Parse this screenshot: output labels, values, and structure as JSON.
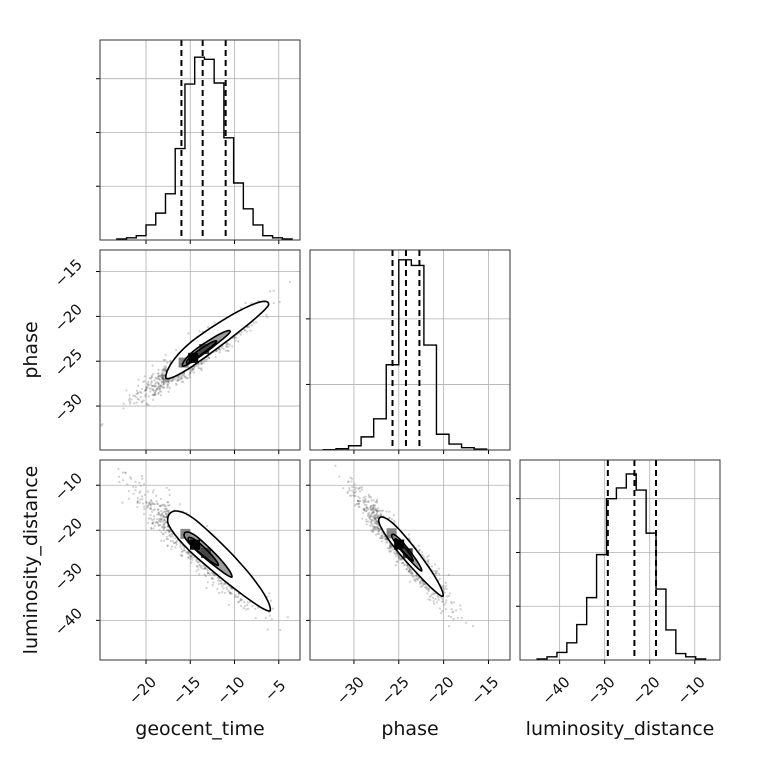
{
  "chart_data": {
    "type": "corner",
    "grid": true,
    "parameters": [
      {
        "name": "geocent_time",
        "range": [
          -25.2,
          -2.6
        ],
        "ticks": [
          -20,
          -15,
          -10,
          -5
        ],
        "tick_labels": [
          "−20",
          "−15",
          "−10",
          "−5"
        ],
        "quantiles": [
          -16.0,
          -13.6,
          -11.0
        ],
        "histogram": {
          "bin_edges": [
            -23.3,
            -22.2,
            -21.1,
            -20.0,
            -18.9,
            -17.8,
            -16.7,
            -15.6,
            -14.5,
            -13.4,
            -12.3,
            -11.2,
            -10.1,
            -9.0,
            -7.9,
            -6.8,
            -5.7,
            -4.6,
            -3.5
          ],
          "counts": [
            1,
            2,
            4,
            14,
            25,
            43,
            85,
            145,
            170,
            168,
            146,
            95,
            53,
            29,
            14,
            4,
            2,
            1
          ],
          "ylim": [
            0,
            186
          ],
          "ticks": [
            50,
            100,
            150
          ]
        }
      },
      {
        "name": "phase",
        "range": [
          -34.9,
          -12.6
        ],
        "ticks": [
          -30,
          -25,
          -20,
          -15
        ],
        "tick_labels": [
          "−30",
          "−25",
          "−20",
          "−15"
        ],
        "quantiles": [
          -25.7,
          -24.2,
          -22.7
        ],
        "histogram": {
          "bin_edges": [
            -33.4,
            -32.0,
            -30.6,
            -29.2,
            -27.8,
            -26.4,
            -25.0,
            -23.6,
            -22.2,
            -20.8,
            -19.4,
            -18.0,
            -16.6,
            -15.2
          ],
          "counts": [
            1,
            4,
            13,
            40,
            95,
            260,
            580,
            563,
            320,
            48,
            18,
            7,
            3
          ],
          "ylim": [
            0,
            610
          ],
          "ticks": [
            200,
            400
          ]
        }
      },
      {
        "name": "luminosity_distance",
        "range": [
          -48.8,
          -4.4
        ],
        "ticks": [
          -40,
          -30,
          -20,
          -10
        ],
        "tick_labels": [
          "−40",
          "−30",
          "−20",
          "−10"
        ],
        "quantiles": [
          -29.3,
          -23.4,
          -18.6
        ],
        "histogram": {
          "bin_edges": [
            -45.0,
            -42.8,
            -40.6,
            -38.4,
            -36.2,
            -34.0,
            -31.8,
            -29.6,
            -27.4,
            -25.2,
            -23.0,
            -20.8,
            -18.6,
            -16.4,
            -14.2,
            -12.0,
            -9.8,
            -7.6
          ],
          "counts": [
            1,
            3,
            7,
            16,
            33,
            58,
            98,
            150,
            160,
            173,
            158,
            118,
            66,
            28,
            6,
            3,
            1
          ],
          "ylim": [
            0,
            186
          ],
          "ticks": [
            50,
            100,
            150
          ]
        }
      }
    ],
    "contours": [
      {
        "x": "geocent_time",
        "y": "phase",
        "center": [
          -14.2,
          -24.3
        ],
        "slope": 0.7,
        "scatter_sd": [
          3.1,
          2.3
        ],
        "levels": [
          {
            "a": [
              0.7,
              0.4
            ],
            "b": [
              0.55,
              0.35
            ],
            "shade": "#555555"
          },
          {
            "a": [
              1.2,
              0.55
            ],
            "b": [
              1.0,
              0.5
            ],
            "shade": "#9c9c9c"
          },
          {
            "a": [
              2.6,
              1.15
            ],
            "b": [
              2.6,
              1.15
            ],
            "shade": "#ffffff"
          }
        ]
      },
      {
        "x": "geocent_time",
        "y": "luminosity_distance",
        "center": [
          -14.0,
          -24.0
        ],
        "slope": -1.7,
        "scatter_sd": [
          3.1,
          5.7
        ],
        "levels": [
          {
            "a": [
              0.7,
              0.4
            ],
            "b": [
              0.55,
              0.4
            ],
            "shade": "#555555"
          },
          {
            "a": [
              1.2,
              0.55
            ],
            "b": [
              1.0,
              0.5
            ],
            "shade": "#9c9c9c"
          },
          {
            "a": [
              2.6,
              1.15
            ],
            "b": [
              2.6,
              1.15
            ],
            "shade": "#ffffff"
          }
        ]
      },
      {
        "x": "phase",
        "y": "luminosity_distance",
        "center": [
          -24.6,
          -24.0
        ],
        "slope": -2.3,
        "scatter_sd": [
          2.4,
          5.7
        ],
        "levels": [
          {
            "a": [
              0.5,
              0.35
            ],
            "b": [
              0.45,
              0.3
            ],
            "shade": "#555555"
          },
          {
            "a": [
              0.9,
              0.5
            ],
            "b": [
              0.8,
              0.45
            ],
            "shade": "#9c9c9c"
          },
          {
            "a": [
              1.9,
              1.1
            ],
            "b": [
              1.9,
              1.1
            ],
            "shade": "#ffffff"
          }
        ]
      }
    ]
  }
}
